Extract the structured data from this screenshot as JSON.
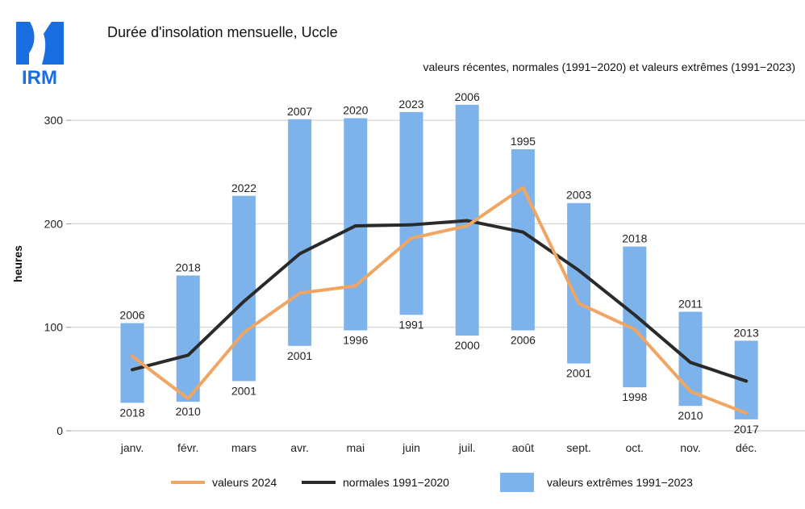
{
  "logo": {
    "text": "IRM",
    "color": "#1a6ee0"
  },
  "chart_data": {
    "type": "bar",
    "title": "Durée d'insolation mensuelle, Uccle",
    "subtitle": "valeurs récentes, normales (1991−2020) et valeurs extrêmes (1991−2023)",
    "ylabel": "heures",
    "xlabel": "",
    "ylim": [
      0,
      330
    ],
    "yticks": [
      0,
      100,
      200,
      300
    ],
    "grid": true,
    "legend_position": "bottom",
    "categories": [
      "janv.",
      "févr.",
      "mars",
      "avr.",
      "mai",
      "juin",
      "juil.",
      "août",
      "sept.",
      "oct.",
      "nov.",
      "déc."
    ],
    "series": [
      {
        "name": "valeurs extrêmes 1991−2023",
        "kind": "range-bar",
        "color": "#7db3ea",
        "min": [
          27,
          28,
          48,
          82,
          97,
          112,
          92,
          97,
          65,
          42,
          24,
          11
        ],
        "max": [
          104,
          150,
          227,
          301,
          302,
          308,
          315,
          272,
          220,
          178,
          115,
          87
        ],
        "min_years": [
          "2018",
          "2010",
          "2001",
          "2001",
          "1996",
          "1991",
          "2000",
          "2006",
          "2001",
          "1998",
          "2010",
          "2017"
        ],
        "max_years": [
          "2006",
          "2018",
          "2022",
          "2007",
          "2020",
          "2023",
          "2006",
          "1995",
          "2003",
          "2018",
          "2011",
          "2013"
        ]
      },
      {
        "name": "normales 1991−2020",
        "kind": "line",
        "color": "#2a2a2a",
        "values": [
          59,
          73,
          125,
          171,
          198,
          199,
          203,
          192,
          155,
          112,
          66,
          48
        ]
      },
      {
        "name": "valeurs 2024",
        "kind": "line",
        "color": "#f0a562",
        "values": [
          72,
          31,
          95,
          133,
          140,
          186,
          198,
          235,
          123,
          98,
          38,
          17
        ]
      }
    ]
  }
}
